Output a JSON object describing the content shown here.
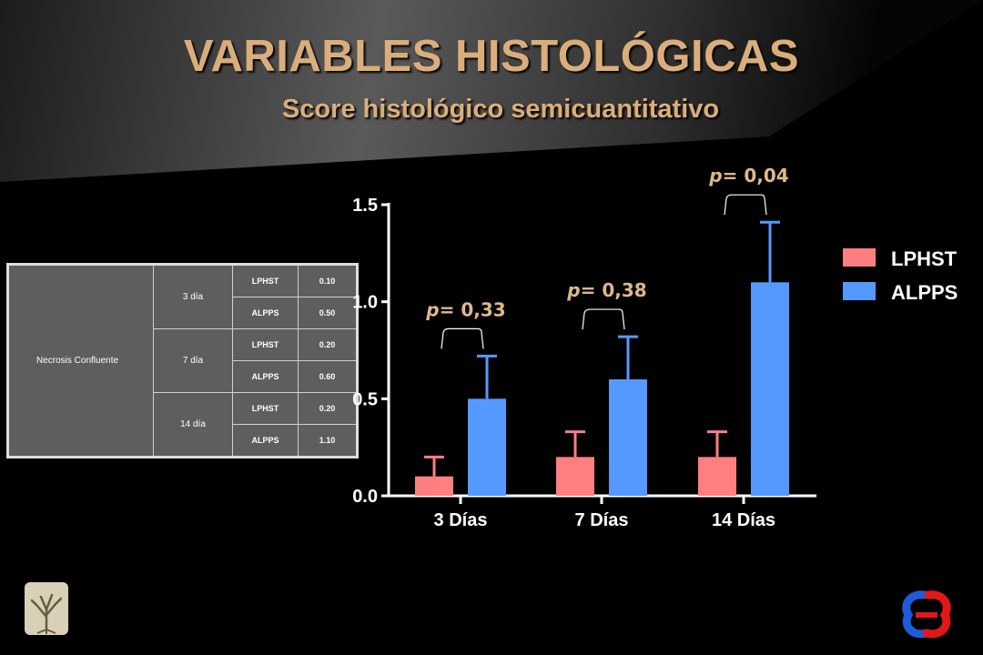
{
  "header": {
    "title": "VARIABLES HISTOLÓGICAS",
    "subtitle": "Score histológico semicuantitativo"
  },
  "table": {
    "variable": "Necrosis Confluente",
    "groups": [
      {
        "day": "3 día",
        "rows": [
          {
            "group": "LPHST",
            "value": "0.10"
          },
          {
            "group": "ALPPS",
            "value": "0.50"
          }
        ]
      },
      {
        "day": "7 día",
        "rows": [
          {
            "group": "LPHST",
            "value": "0.20"
          },
          {
            "group": "ALPPS",
            "value": "0.60"
          }
        ]
      },
      {
        "day": "14 día",
        "rows": [
          {
            "group": "LPHST",
            "value": "0.20"
          },
          {
            "group": "ALPPS",
            "value": "1.10"
          }
        ]
      }
    ]
  },
  "chart_data": {
    "type": "bar",
    "categories": [
      "3 Días",
      "7 Días",
      "14 Días"
    ],
    "series": [
      {
        "name": "LPHST",
        "color": "#ff7f80",
        "values": [
          0.1,
          0.2,
          0.2
        ],
        "errors": [
          0.1,
          0.13,
          0.13
        ]
      },
      {
        "name": "ALPPS",
        "color": "#5599ff",
        "values": [
          0.5,
          0.6,
          1.1
        ],
        "errors": [
          0.22,
          0.22,
          0.31
        ]
      }
    ],
    "ylim": [
      0,
      1.5
    ],
    "yticks": [
      "0.0",
      "0.5",
      "1.0",
      "1.5"
    ],
    "yticks_values": [
      0,
      0.5,
      1.0,
      1.5
    ],
    "p_values": [
      "= 0,33",
      "= 0,38",
      "= 0,04"
    ],
    "p_symbol": "p",
    "legend_position": "right",
    "grid": false,
    "title": "",
    "xlabel": "",
    "ylabel": ""
  }
}
